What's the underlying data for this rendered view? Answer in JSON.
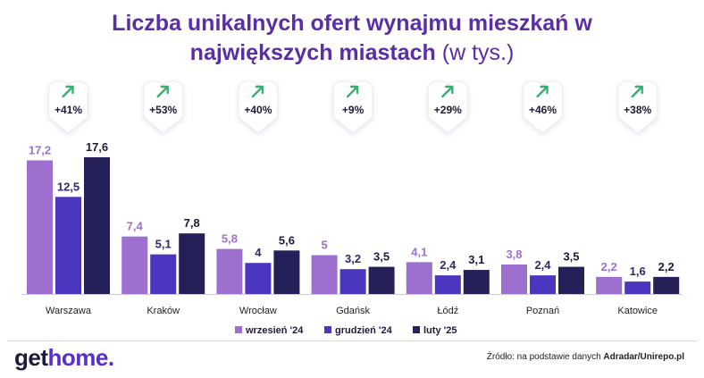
{
  "title": {
    "bold": "Liczba unikalnych ofert wynajmu mieszkań w największych miastach",
    "normal": "(w tys.)"
  },
  "logo": {
    "part1": "get",
    "part2": "home",
    "dot": "."
  },
  "source": {
    "prefix": "Źródło: na podstawie danych ",
    "bold": "Adradar/Unirepo.pl"
  },
  "colors": {
    "series": [
      "#9d6fcf",
      "#4b36c0",
      "#262058"
    ],
    "label": [
      "#9d6fcf",
      "#2e2a6b",
      "#1e1b3a"
    ],
    "change": "#1e1b3a",
    "arrow": "#38b070",
    "title": "#5b2ea6"
  },
  "chart_data": {
    "type": "bar",
    "title": "Liczba unikalnych ofert wynajmu mieszkań w największych miastach (w tys.)",
    "categories": [
      "Warszawa",
      "Kraków",
      "Wrocław",
      "Gdańsk",
      "Łódź",
      "Poznań",
      "Katowice"
    ],
    "series": [
      {
        "name": "wrzesień '24",
        "values": [
          17.2,
          7.4,
          5.8,
          5,
          4.1,
          3.8,
          2.2
        ],
        "labels": [
          "17,2",
          "7,4",
          "5,8",
          "5",
          "4,1",
          "3,8",
          "2,2"
        ]
      },
      {
        "name": "grudzień '24",
        "values": [
          12.5,
          5.1,
          4,
          3.2,
          2.4,
          2.4,
          1.6
        ],
        "labels": [
          "12,5",
          "5,1",
          "4",
          "3,2",
          "2,4",
          "2,4",
          "1,6"
        ]
      },
      {
        "name": "luty '25",
        "values": [
          17.6,
          7.8,
          5.6,
          3.5,
          3.1,
          3.5,
          2.2
        ],
        "labels": [
          "17,6",
          "7,8",
          "5,6",
          "3,5",
          "3,1",
          "3,5",
          "2,2"
        ]
      }
    ],
    "changes": [
      "+41%",
      "+53%",
      "+40%",
      "+9%",
      "+29%",
      "+46%",
      "+38%"
    ],
    "ylim": [
      0,
      17.6
    ],
    "grid": false,
    "legend_position": "bottom-center"
  }
}
